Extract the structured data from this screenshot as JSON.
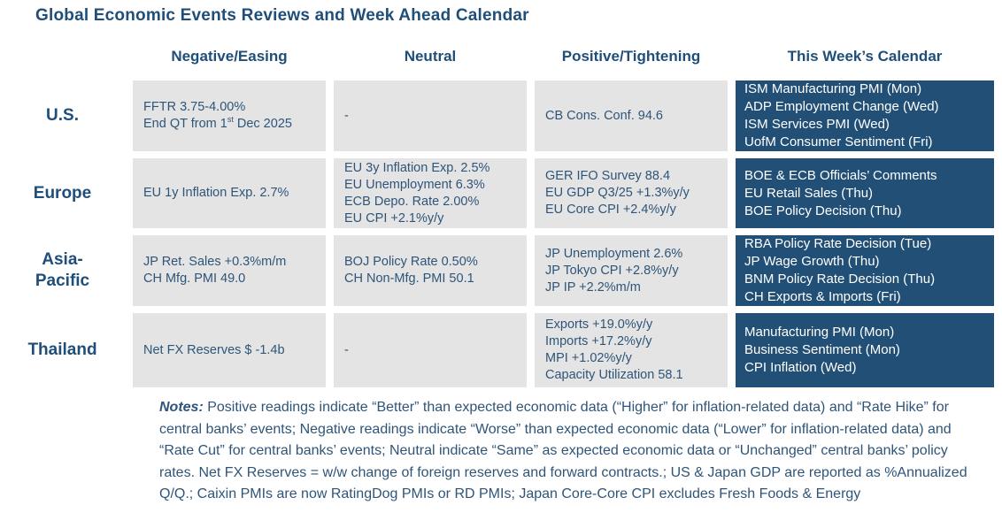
{
  "title": "Global Economic Events Reviews and Week Ahead Calendar",
  "columns": {
    "negative": "Negative/Easing",
    "neutral": "Neutral",
    "positive": "Positive/Tightening",
    "calendar": "This Week’s Calendar"
  },
  "colors": {
    "navy_text": "#1F4E79",
    "cell_bg": "#E4E4E4",
    "cell_text": "#2E5579",
    "calendar_bg": "#224F76",
    "calendar_text": "#FFFFFF"
  },
  "rows": [
    {
      "region": [
        "U.S."
      ],
      "negative": [
        "FFTR 3.75-4.00%"
      ],
      "negative_qt": {
        "pre": "End QT from 1",
        "sup": "st",
        "post": " Dec 2025"
      },
      "neutral": [
        "-"
      ],
      "positive": [
        "CB Cons. Conf. 94.6"
      ],
      "calendar": [
        "ISM Manufacturing PMI (Mon)",
        "ADP Employment Change (Wed)",
        "ISM Services PMI (Wed)",
        "UofM Consumer Sentiment (Fri)"
      ]
    },
    {
      "region": [
        "Europe"
      ],
      "negative": [
        "EU 1y Inflation Exp. 2.7%"
      ],
      "neutral": [
        "EU 3y Inflation Exp. 2.5%",
        "EU Unemployment 6.3%",
        "ECB Depo. Rate 2.00%",
        "EU CPI +2.1%y/y"
      ],
      "positive": [
        "GER IFO Survey 88.4",
        "EU GDP Q3/25 +1.3%y/y",
        "EU Core CPI +2.4%y/y"
      ],
      "calendar": [
        "BOE & ECB Officials’ Comments",
        "EU Retail Sales (Thu)",
        "BOE Policy Decision (Thu)"
      ]
    },
    {
      "region": [
        "Asia-",
        "Pacific"
      ],
      "negative": [
        "JP Ret. Sales +0.3%m/m",
        "CH Mfg. PMI 49.0"
      ],
      "neutral": [
        "BOJ Policy Rate 0.50%",
        "CH Non-Mfg. PMI 50.1"
      ],
      "positive": [
        "JP Unemployment 2.6%",
        "JP Tokyo CPI +2.8%y/y",
        "JP IP +2.2%m/m"
      ],
      "calendar": [
        "RBA Policy Rate Decision (Tue)",
        "JP Wage Growth (Thu)",
        "BNM Policy Rate Decision (Thu)",
        "CH Exports & Imports (Fri)"
      ]
    },
    {
      "region": [
        "Thailand"
      ],
      "negative": [
        "Net FX Reserves $ -1.4b"
      ],
      "neutral": [
        "-"
      ],
      "positive": [
        "Exports +19.0%y/y",
        "Imports +17.2%y/y",
        "MPI +1.02%y/y",
        "Capacity Utilization 58.1"
      ],
      "calendar": [
        "Manufacturing PMI (Mon)",
        "Business Sentiment (Mon)",
        "CPI Inflation (Wed)"
      ]
    }
  ],
  "notes": {
    "label": "Notes:",
    "body": " Positive readings indicate “Better” than expected economic data (“Higher” for inflation-related data) and “Rate Hike” for central banks’ events; Negative readings indicate “Worse” than expected economic data (“Lower” for inflation-related data) and “Rate Cut” for central banks’ events; Neutral indicate “Same” as expected economic data or “Unchanged” central banks’ policy rates. Net FX Reserves = w/w change of foreign reserves and forward contracts.; US & Japan GDP are reported as %Annualized Q/Q.; Caixin PMIs are now RatingDog PMIs or RD PMIs; Japan Core-Core CPI excludes Fresh Foods & Energy"
  }
}
